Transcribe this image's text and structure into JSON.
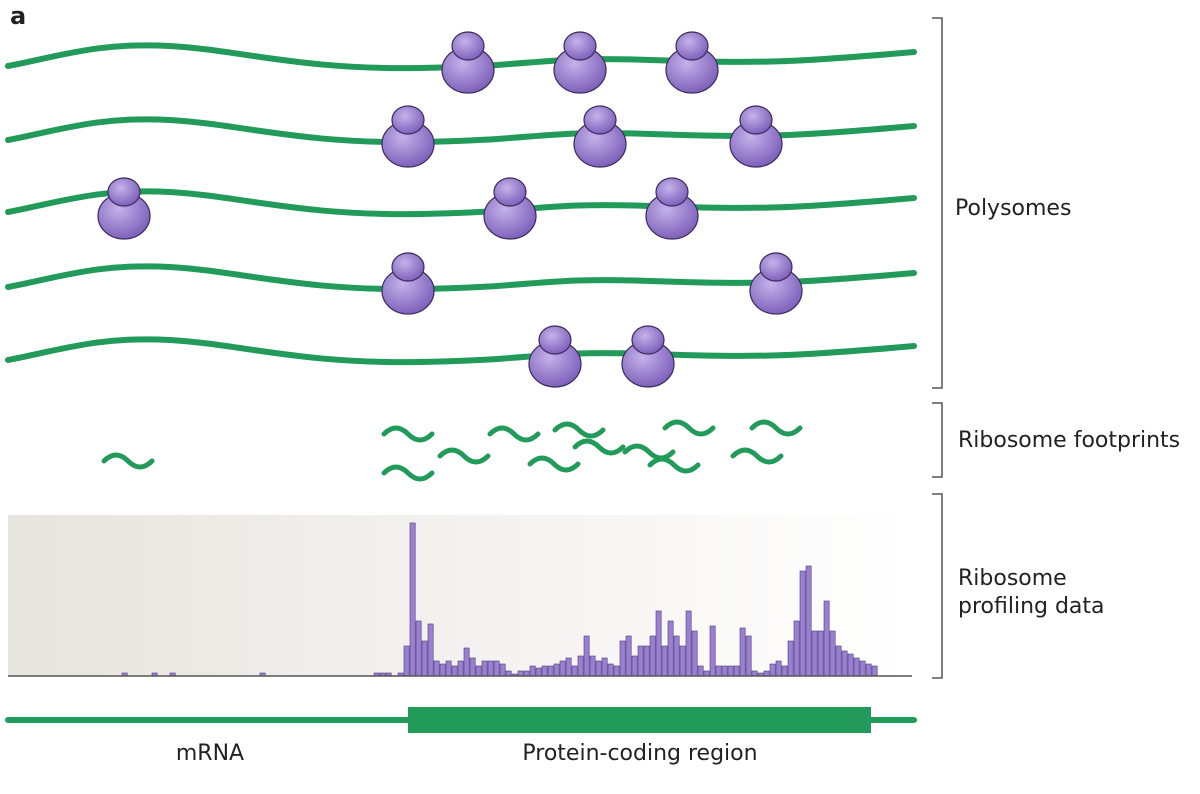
{
  "panel_label": "a",
  "labels": {
    "polysomes": "Polysomes",
    "footprints": "Ribosome footprints",
    "profiling": [
      "Ribosome",
      "profiling data"
    ],
    "mrna": "mRNA",
    "coding": "Protein-coding region"
  },
  "profile": {
    "counts": [
      0,
      0,
      0,
      0,
      0,
      0,
      0,
      0,
      0,
      0,
      0,
      0,
      0,
      0,
      0,
      0,
      0,
      0,
      0,
      3,
      0,
      0,
      0,
      0,
      3,
      0,
      0,
      3,
      0,
      0,
      0,
      0,
      0,
      0,
      0,
      0,
      0,
      0,
      0,
      0,
      0,
      0,
      3,
      0,
      0,
      0,
      0,
      0,
      0,
      0,
      0,
      0,
      0,
      0,
      0,
      0,
      0,
      0,
      0,
      0,
      0,
      3,
      3,
      3,
      0,
      3,
      30,
      153,
      55,
      35,
      52,
      15,
      12,
      15,
      10,
      15,
      28,
      18,
      10,
      15,
      15,
      15,
      12,
      5,
      2,
      5,
      5,
      10,
      8,
      10,
      10,
      12,
      15,
      18,
      10,
      20,
      40,
      20,
      15,
      18,
      12,
      10,
      35,
      40,
      20,
      30,
      30,
      40,
      65,
      30,
      55,
      40,
      30,
      65,
      45,
      10,
      5,
      50,
      10,
      10,
      10,
      10,
      48,
      40,
      5,
      3,
      5,
      12,
      15,
      10,
      35,
      55,
      105,
      110,
      45,
      45,
      75,
      45,
      30,
      25,
      22,
      18,
      15,
      12,
      10
    ]
  }
}
